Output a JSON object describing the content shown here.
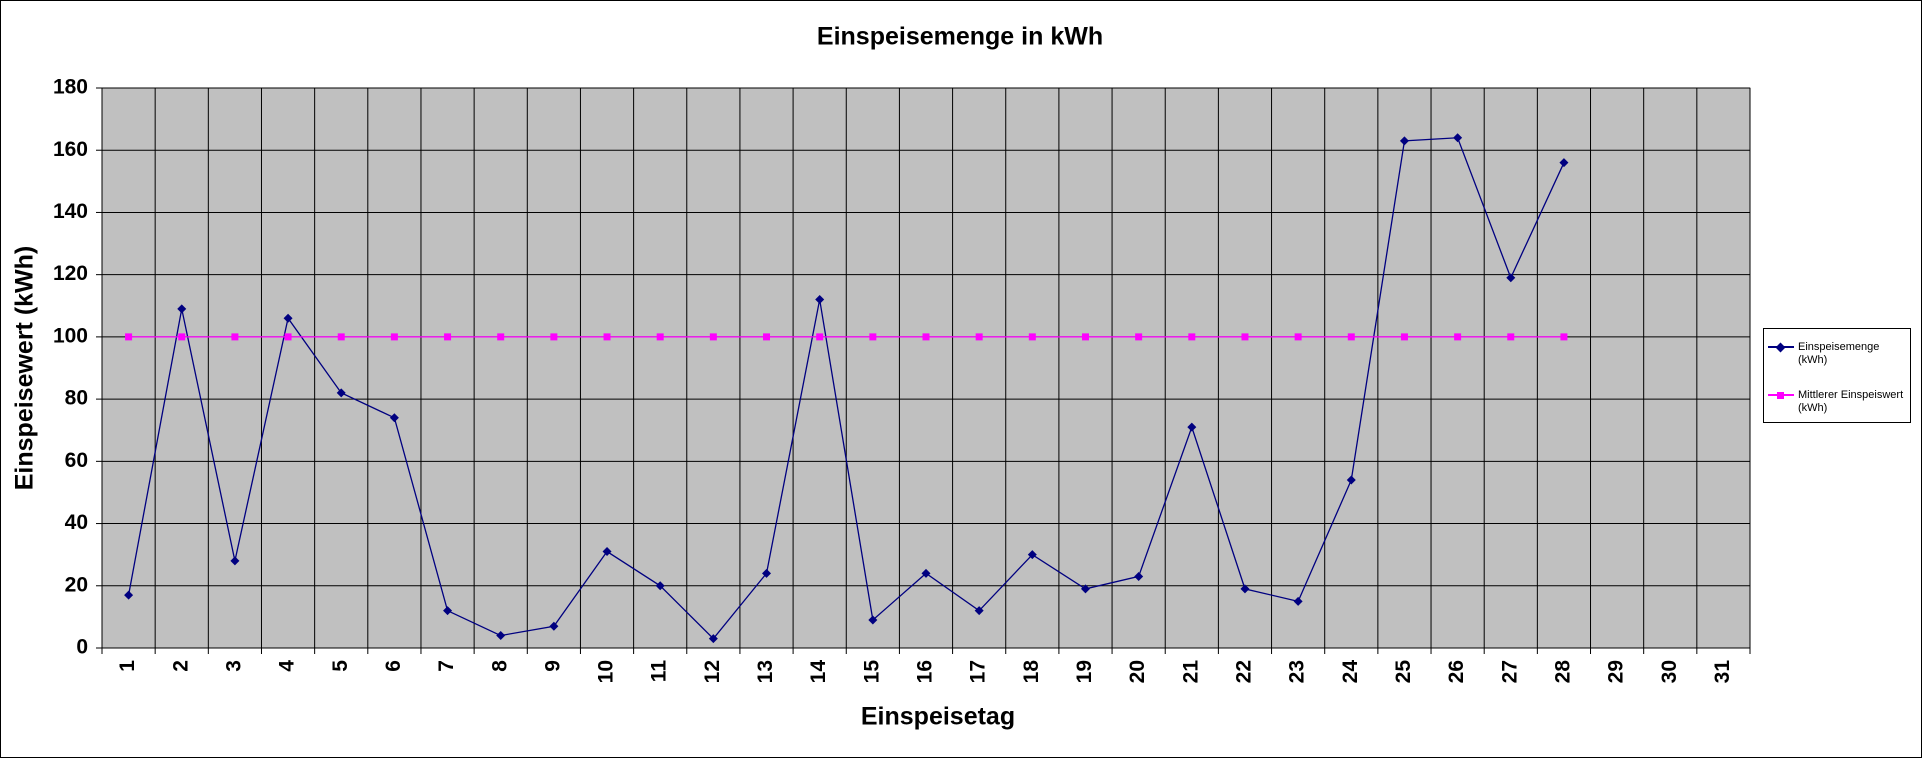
{
  "chart_data": {
    "type": "line",
    "title": "Einspeisemenge in kWh",
    "x_label": "Einspeisetag",
    "y_label": "Einspeisewert  (kWh)",
    "categories": [
      "1",
      "2",
      "3",
      "4",
      "5",
      "6",
      "7",
      "8",
      "9",
      "10",
      "11",
      "12",
      "13",
      "14",
      "15",
      "16",
      "17",
      "18",
      "19",
      "20",
      "21",
      "22",
      "23",
      "24",
      "25",
      "26",
      "27",
      "28",
      "29",
      "30",
      "31"
    ],
    "series": [
      {
        "name": "Einspeisemenge (kWh)",
        "color": "#000080",
        "marker": "diamond",
        "values": [
          17,
          109,
          28,
          106,
          82,
          74,
          12,
          4,
          7,
          31,
          20,
          3,
          24,
          112,
          9,
          24,
          12,
          30,
          19,
          23,
          71,
          19,
          15,
          54,
          163,
          164,
          119,
          156,
          null,
          null,
          null
        ]
      },
      {
        "name": "Mittlerer Einspeiswert (kWh)",
        "color": "#ff00ff",
        "marker": "square",
        "values": [
          100,
          100,
          100,
          100,
          100,
          100,
          100,
          100,
          100,
          100,
          100,
          100,
          100,
          100,
          100,
          100,
          100,
          100,
          100,
          100,
          100,
          100,
          100,
          100,
          100,
          100,
          100,
          100,
          null,
          null,
          null
        ]
      }
    ],
    "ylim": [
      0,
      180
    ],
    "yticks": [
      0,
      20,
      40,
      60,
      80,
      100,
      120,
      140,
      160,
      180
    ],
    "grid": true,
    "legend": "right"
  }
}
